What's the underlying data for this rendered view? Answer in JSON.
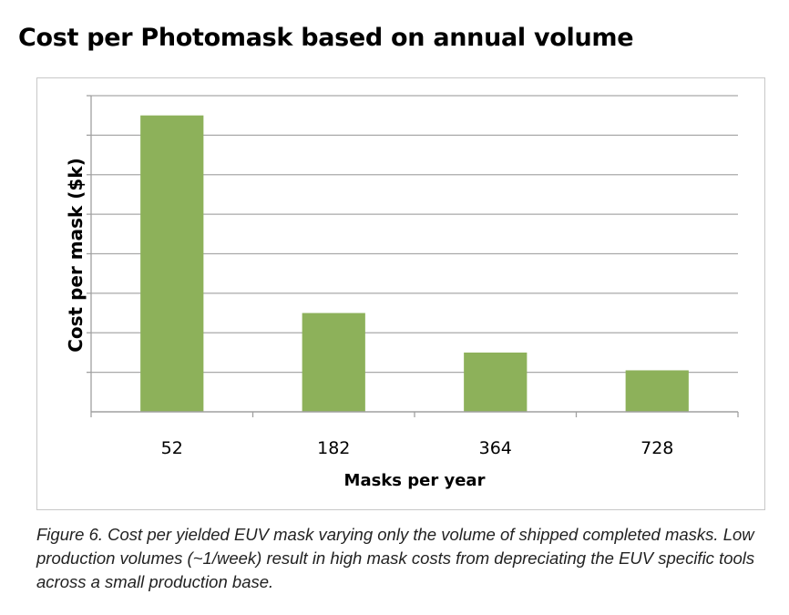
{
  "title": "Cost per Photomask based on annual volume",
  "caption": "Figure 6. Cost per yielded EUV mask varying only the volume of shipped completed masks. Low production volumes (~1/week) result in high mask costs from depreciating the EUV specific tools across a small production base.",
  "colors": {
    "bar": "#8db15a",
    "grid": "#a9a9a9",
    "axis": "#a0a0a0",
    "frame": "#c8c8c8"
  },
  "chart_data": {
    "type": "bar",
    "categories": [
      "52",
      "182",
      "364",
      "728"
    ],
    "values": [
      7.5,
      2.5,
      1.5,
      1.05
    ],
    "ylim": [
      0,
      8
    ],
    "ytick_step": 1,
    "y_tick_labels_shown": false,
    "grid": true,
    "legend": "none",
    "xlabel": "Masks per year",
    "ylabel": "Cost per mask ($k)"
  }
}
